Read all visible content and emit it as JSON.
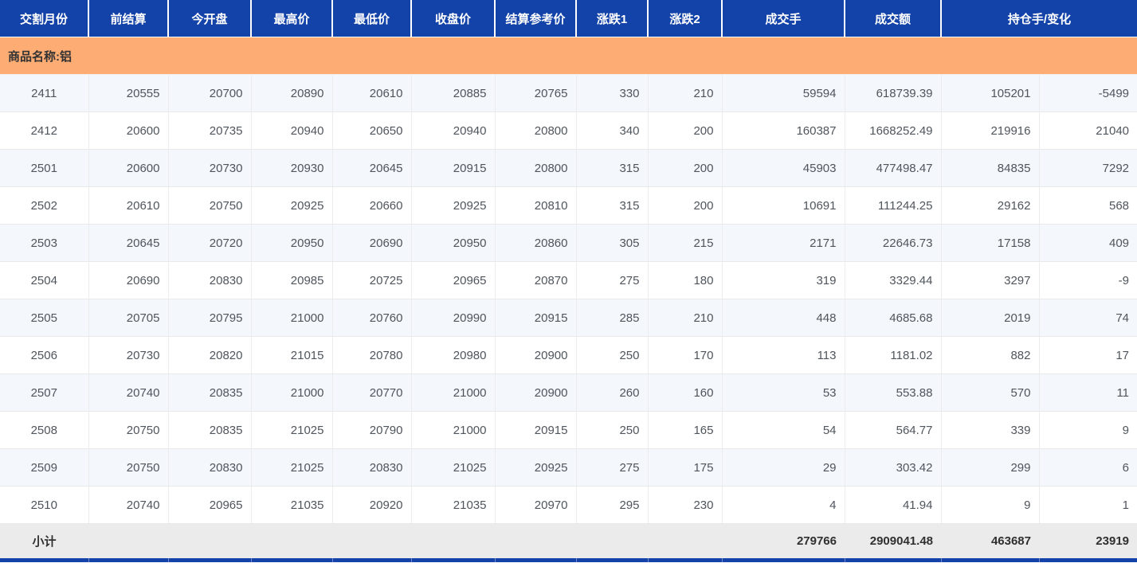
{
  "table": {
    "columns": [
      {
        "label": "交割月份",
        "span": 1
      },
      {
        "label": "前结算",
        "span": 1
      },
      {
        "label": "今开盘",
        "span": 1
      },
      {
        "label": "最高价",
        "span": 1
      },
      {
        "label": "最低价",
        "span": 1
      },
      {
        "label": "收盘价",
        "span": 1
      },
      {
        "label": "结算参考价",
        "span": 1
      },
      {
        "label": "涨跌1",
        "span": 1
      },
      {
        "label": "涨跌2",
        "span": 1
      },
      {
        "label": "成交手",
        "span": 1
      },
      {
        "label": "成交额",
        "span": 1
      },
      {
        "label": "持仓手/变化",
        "span": 2
      }
    ],
    "group_label": "商品名称:铝",
    "rows": [
      [
        "2411",
        "20555",
        "20700",
        "20890",
        "20610",
        "20885",
        "20765",
        "330",
        "210",
        "59594",
        "618739.39",
        "105201",
        "-5499"
      ],
      [
        "2412",
        "20600",
        "20735",
        "20940",
        "20650",
        "20940",
        "20800",
        "340",
        "200",
        "160387",
        "1668252.49",
        "219916",
        "21040"
      ],
      [
        "2501",
        "20600",
        "20730",
        "20930",
        "20645",
        "20915",
        "20800",
        "315",
        "200",
        "45903",
        "477498.47",
        "84835",
        "7292"
      ],
      [
        "2502",
        "20610",
        "20750",
        "20925",
        "20660",
        "20925",
        "20810",
        "315",
        "200",
        "10691",
        "111244.25",
        "29162",
        "568"
      ],
      [
        "2503",
        "20645",
        "20720",
        "20950",
        "20690",
        "20950",
        "20860",
        "305",
        "215",
        "2171",
        "22646.73",
        "17158",
        "409"
      ],
      [
        "2504",
        "20690",
        "20830",
        "20985",
        "20725",
        "20965",
        "20870",
        "275",
        "180",
        "319",
        "3329.44",
        "3297",
        "-9"
      ],
      [
        "2505",
        "20705",
        "20795",
        "21000",
        "20760",
        "20990",
        "20915",
        "285",
        "210",
        "448",
        "4685.68",
        "2019",
        "74"
      ],
      [
        "2506",
        "20730",
        "20820",
        "21015",
        "20780",
        "20980",
        "20900",
        "250",
        "170",
        "113",
        "1181.02",
        "882",
        "17"
      ],
      [
        "2507",
        "20740",
        "20835",
        "21000",
        "20770",
        "21000",
        "20900",
        "260",
        "160",
        "53",
        "553.88",
        "570",
        "11"
      ],
      [
        "2508",
        "20750",
        "20835",
        "21025",
        "20790",
        "21000",
        "20915",
        "250",
        "165",
        "54",
        "564.77",
        "339",
        "9"
      ],
      [
        "2509",
        "20750",
        "20830",
        "21025",
        "20830",
        "21025",
        "20925",
        "275",
        "175",
        "29",
        "303.42",
        "299",
        "6"
      ],
      [
        "2510",
        "20740",
        "20965",
        "21035",
        "20920",
        "21035",
        "20970",
        "295",
        "230",
        "4",
        "41.94",
        "9",
        "1"
      ]
    ],
    "subtotal": {
      "label": "小计",
      "volume": "279766",
      "turnover": "2909041.48",
      "open_interest": "463687",
      "change": "23919"
    }
  },
  "colors": {
    "header_bg": "#1343A8",
    "banner_bg": "#FDAC74",
    "stripe_bg": "#F4F7FB",
    "subtotal_bg": "#EBEBEB"
  }
}
